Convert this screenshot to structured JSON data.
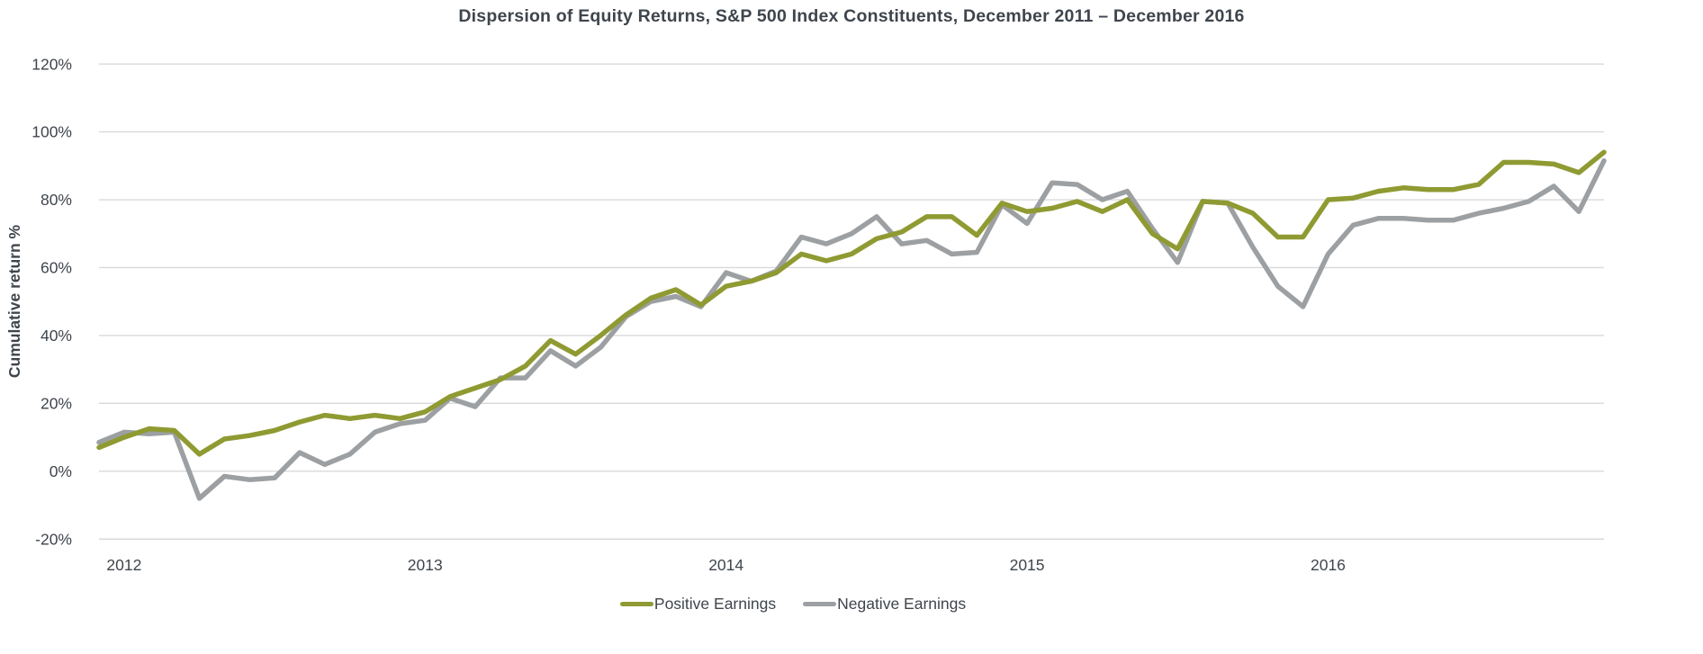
{
  "chart_data": {
    "type": "line",
    "title": "Dispersion of Equity Returns, S&P 500 Index Constituents, December 2011 – December 2016",
    "ylabel": "Cumulative return %",
    "ylim": [
      -20,
      120
    ],
    "grid": true,
    "legend_position": "bottom-center",
    "y_ticks": [
      {
        "label": "120%",
        "value": 120
      },
      {
        "label": "100%",
        "value": 100
      },
      {
        "label": "80%",
        "value": 80
      },
      {
        "label": "60%",
        "value": 60
      },
      {
        "label": "40%",
        "value": 40
      },
      {
        "label": "20%",
        "value": 20
      },
      {
        "label": "0%",
        "value": 0
      },
      {
        "label": "-20%",
        "value": -20
      }
    ],
    "x_tick_labels": [
      "2012",
      "2013",
      "2014",
      "2015",
      "2016"
    ],
    "colors": {
      "grid": "#D9D9D9",
      "text": "#3F454C",
      "background": "#FFFFFF",
      "positive_series": "#8F9A32",
      "negative_series": "#9DA0A3"
    },
    "series": [
      {
        "name": "Positive Earnings",
        "color": "#8F9A32",
        "values": [
          7,
          10,
          12.5,
          12,
          5,
          9.5,
          10.5,
          12,
          14.5,
          16.5,
          15.5,
          16.5,
          15.5,
          17.5,
          22,
          24.5,
          27,
          31,
          38.5,
          34.5,
          40,
          46,
          51,
          53.5,
          49,
          54.5,
          56,
          58.5,
          64,
          62,
          64,
          68.5,
          70.5,
          75,
          75,
          69.5,
          79,
          76.5,
          77.5,
          79.5,
          76.5,
          80,
          70,
          65.5,
          79.5,
          79,
          76,
          69,
          69,
          80,
          80.5,
          82.5,
          83.5,
          83,
          83,
          84.5,
          91,
          91,
          90.5,
          88,
          94
        ]
      },
      {
        "name": "Negative Earnings",
        "color": "#9DA0A3",
        "values": [
          8.5,
          11.5,
          11,
          11.5,
          -8,
          -1.5,
          -2.5,
          -2,
          5.5,
          2,
          5,
          11.5,
          14,
          15,
          21.5,
          19,
          27.5,
          27.5,
          35.5,
          31,
          36.5,
          45.5,
          50,
          51.5,
          48.5,
          58.5,
          56,
          59,
          69,
          67,
          70,
          75,
          67,
          68,
          64,
          64.5,
          78.5,
          73,
          85,
          84.5,
          80,
          82.5,
          71.5,
          61.5,
          79.5,
          79,
          66,
          54.5,
          48.5,
          64,
          72.5,
          74.5,
          74.5,
          74,
          74,
          76,
          77.5,
          79.5,
          84,
          76.5,
          91.5
        ]
      }
    ]
  }
}
